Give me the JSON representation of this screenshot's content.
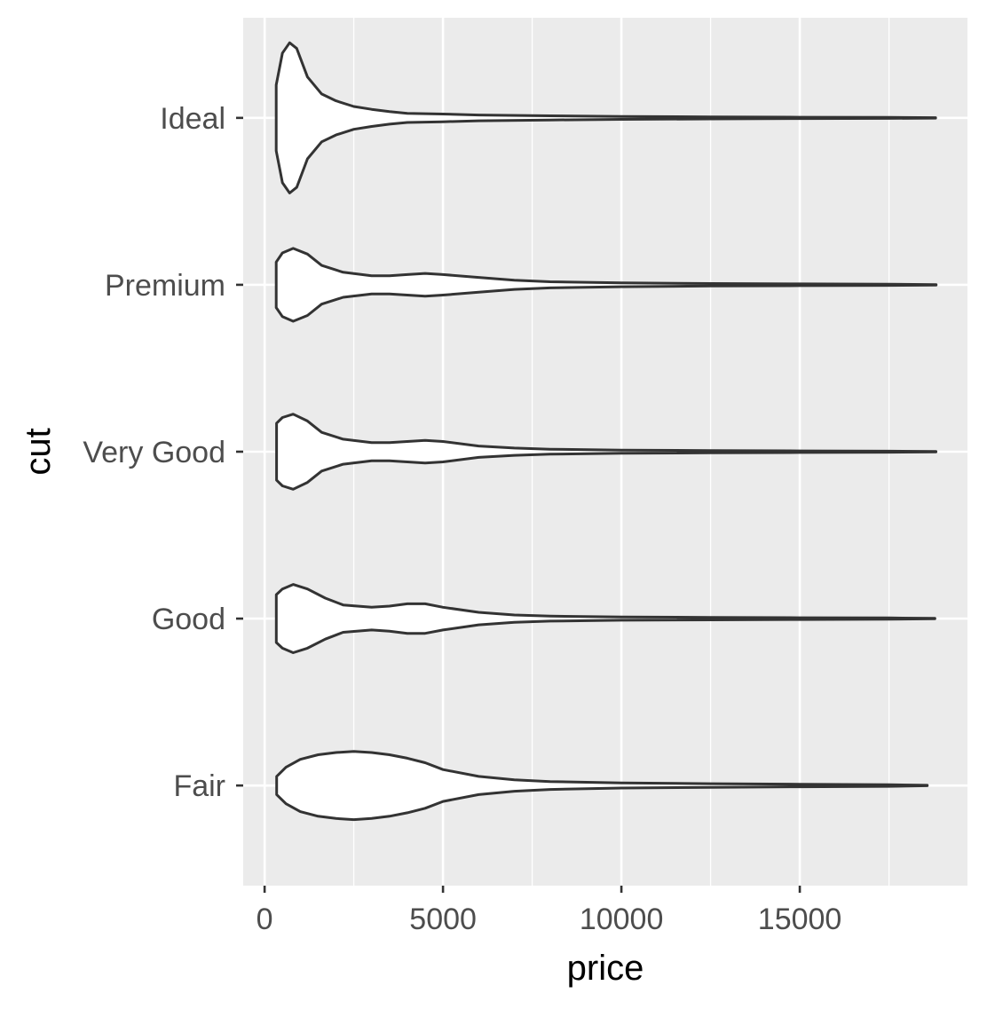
{
  "chart_data": {
    "type": "violin",
    "orientation": "horizontal",
    "title": "",
    "xlabel": "price",
    "ylabel": "cut",
    "xlim": [
      -600,
      19700
    ],
    "x_ticks": [
      0,
      5000,
      10000,
      15000
    ],
    "x_tick_labels": [
      "0",
      "5000",
      "10000",
      "15000"
    ],
    "categories": [
      "Ideal",
      "Premium",
      "Very Good",
      "Good",
      "Fair"
    ],
    "grid": true,
    "legend": "none",
    "colors": {
      "panel_background": "#ebebeb",
      "grid": "#ffffff",
      "violin_fill": "#ffffff",
      "violin_outline": "#333333",
      "tick_label": "#4d4d4d",
      "axis_title": "#000000"
    },
    "max_density": 0.00066,
    "series": [
      {
        "name": "Ideal",
        "min": 326,
        "max": 18806,
        "density": [
          [
            326,
            0.00029
          ],
          [
            500,
            0.00057
          ],
          [
            700,
            0.00066
          ],
          [
            900,
            0.00061
          ],
          [
            1200,
            0.00036
          ],
          [
            1600,
            0.00021
          ],
          [
            2000,
            0.00015
          ],
          [
            2500,
            0.0001
          ],
          [
            3000,
            7.5e-05
          ],
          [
            3500,
            5.5e-05
          ],
          [
            4000,
            4e-05
          ],
          [
            5000,
            3.4e-05
          ],
          [
            6000,
            2.5e-05
          ],
          [
            8000,
            1.8e-05
          ],
          [
            10000,
            1.3e-05
          ],
          [
            12500,
            9e-06
          ],
          [
            15000,
            6e-06
          ],
          [
            17500,
            4e-06
          ],
          [
            18806,
            2e-06
          ]
        ]
      },
      {
        "name": "Premium",
        "min": 326,
        "max": 18823,
        "density": [
          [
            326,
            0.0002
          ],
          [
            500,
            0.00028
          ],
          [
            800,
            0.00032
          ],
          [
            1200,
            0.00027
          ],
          [
            1600,
            0.00017
          ],
          [
            2200,
            0.00011
          ],
          [
            3000,
            8e-05
          ],
          [
            3500,
            8e-05
          ],
          [
            4000,
            9e-05
          ],
          [
            4500,
            0.0001
          ],
          [
            5000,
            9e-05
          ],
          [
            6000,
            6.5e-05
          ],
          [
            7000,
            4e-05
          ],
          [
            8000,
            2.7e-05
          ],
          [
            10000,
            1.7e-05
          ],
          [
            12500,
            1.1e-05
          ],
          [
            15000,
            8e-06
          ],
          [
            17500,
            5e-06
          ],
          [
            18823,
            2e-06
          ]
        ]
      },
      {
        "name": "Very Good",
        "min": 336,
        "max": 18818,
        "density": [
          [
            336,
            0.00025
          ],
          [
            500,
            0.0003
          ],
          [
            800,
            0.00033
          ],
          [
            1200,
            0.00027
          ],
          [
            1600,
            0.00017
          ],
          [
            2200,
            0.00011
          ],
          [
            3000,
            8e-05
          ],
          [
            3500,
            8e-05
          ],
          [
            4000,
            9e-05
          ],
          [
            4500,
            0.0001
          ],
          [
            5000,
            9e-05
          ],
          [
            6000,
            5e-05
          ],
          [
            7000,
            3.2e-05
          ],
          [
            8000,
            2.2e-05
          ],
          [
            10000,
            1.4e-05
          ],
          [
            12500,
            1e-05
          ],
          [
            15000,
            7e-06
          ],
          [
            17500,
            5e-06
          ],
          [
            18818,
            2e-06
          ]
        ]
      },
      {
        "name": "Good",
        "min": 327,
        "max": 18788,
        "density": [
          [
            327,
            0.00021
          ],
          [
            500,
            0.00026
          ],
          [
            800,
            0.0003
          ],
          [
            1200,
            0.00026
          ],
          [
            1700,
            0.00018
          ],
          [
            2200,
            0.00012
          ],
          [
            3000,
            0.0001
          ],
          [
            3500,
            0.00011
          ],
          [
            4000,
            0.00013
          ],
          [
            4500,
            0.00013
          ],
          [
            5000,
            0.0001
          ],
          [
            6000,
            5.5e-05
          ],
          [
            7000,
            3.2e-05
          ],
          [
            8000,
            2.2e-05
          ],
          [
            10000,
            1.4e-05
          ],
          [
            12500,
            1.1e-05
          ],
          [
            15000,
            8e-06
          ],
          [
            17500,
            6e-06
          ],
          [
            18788,
            2e-06
          ]
        ]
      },
      {
        "name": "Fair",
        "min": 337,
        "max": 18574,
        "density": [
          [
            337,
            8e-05
          ],
          [
            600,
            0.00016
          ],
          [
            1000,
            0.00023
          ],
          [
            1500,
            0.00027
          ],
          [
            2000,
            0.00029
          ],
          [
            2500,
            0.0003
          ],
          [
            3000,
            0.00029
          ],
          [
            3500,
            0.00027
          ],
          [
            4000,
            0.00024
          ],
          [
            4500,
            0.0002
          ],
          [
            5000,
            0.00014
          ],
          [
            6000,
            8e-05
          ],
          [
            7000,
            5e-05
          ],
          [
            8000,
            3.5e-05
          ],
          [
            10000,
            2.2e-05
          ],
          [
            12500,
            1.6e-05
          ],
          [
            15000,
            1.1e-05
          ],
          [
            17500,
            7e-06
          ],
          [
            18574,
            2e-06
          ]
        ]
      }
    ]
  }
}
